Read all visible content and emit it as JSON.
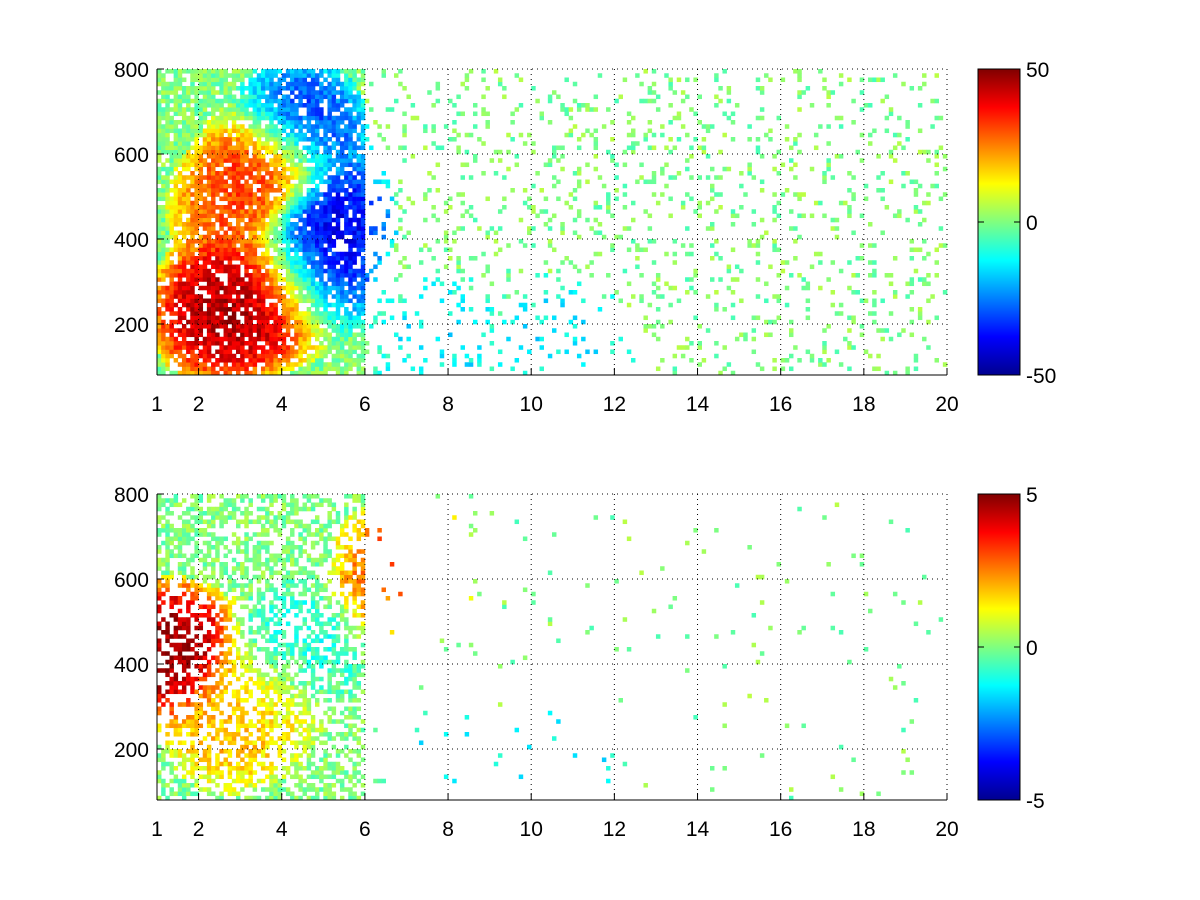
{
  "figure": {
    "background": "#ffffff"
  },
  "chart_data": [
    {
      "type": "heatmap",
      "title": "",
      "xlabel": "",
      "ylabel": "",
      "xlim": [
        1,
        20
      ],
      "ylim": [
        80,
        800
      ],
      "x_ticks": [
        1,
        2,
        4,
        6,
        8,
        10,
        12,
        14,
        16,
        18,
        20
      ],
      "x_tick_labels": [
        "1",
        "2",
        "4",
        "6",
        "8",
        "10",
        "12",
        "14",
        "16",
        "18",
        "20"
      ],
      "y_ticks": [
        200,
        400,
        600,
        800
      ],
      "y_tick_labels": [
        "200",
        "400",
        "600",
        "800"
      ],
      "grid": true,
      "colormap": "jet",
      "colorbar": {
        "range": [
          -50,
          50
        ],
        "ticks": [
          -50,
          0,
          50
        ],
        "tick_labels": [
          "-50",
          "0",
          "50"
        ]
      },
      "sparse_above_x": 6,
      "features": [
        {
          "x": 2.5,
          "y": 230,
          "value": 45
        },
        {
          "x": 3.3,
          "y": 260,
          "value": 50
        },
        {
          "x": 4.0,
          "y": 290,
          "value": 35
        },
        {
          "x": 3.0,
          "y": 480,
          "value": 30
        },
        {
          "x": 3.8,
          "y": 570,
          "value": 40
        },
        {
          "x": 4.6,
          "y": 330,
          "value": -45
        },
        {
          "x": 5.0,
          "y": 450,
          "value": -40
        },
        {
          "x": 4.4,
          "y": 650,
          "value": -35
        },
        {
          "x": 7.8,
          "y": 150,
          "value": -15
        },
        {
          "x": 10.8,
          "y": 150,
          "value": -15
        }
      ]
    },
    {
      "type": "heatmap",
      "title": "",
      "xlabel": "",
      "ylabel": "",
      "xlim": [
        1,
        20
      ],
      "ylim": [
        80,
        800
      ],
      "x_ticks": [
        1,
        2,
        4,
        6,
        8,
        10,
        12,
        14,
        16,
        18,
        20
      ],
      "x_tick_labels": [
        "1",
        "2",
        "4",
        "6",
        "8",
        "10",
        "12",
        "14",
        "16",
        "18",
        "20"
      ],
      "y_ticks": [
        200,
        400,
        600,
        800
      ],
      "y_tick_labels": [
        "200",
        "400",
        "600",
        "800"
      ],
      "grid": true,
      "colormap": "jet",
      "colorbar": {
        "range": [
          -5,
          5
        ],
        "ticks": [
          -5,
          0,
          5
        ],
        "tick_labels": [
          "-5",
          "0",
          "5"
        ]
      },
      "sparse_above_x": 6,
      "features": [
        {
          "x": 1.4,
          "y": 430,
          "value": 5
        },
        {
          "x": 2.8,
          "y": 270,
          "value": 2
        },
        {
          "x": 3.5,
          "y": 330,
          "value": 1.5
        },
        {
          "x": 4.2,
          "y": 420,
          "value": -1
        },
        {
          "x": 6.9,
          "y": 620,
          "value": 3
        },
        {
          "x": 7.8,
          "y": 150,
          "value": -1.5
        },
        {
          "x": 10.8,
          "y": 150,
          "value": -1.5
        }
      ]
    }
  ]
}
